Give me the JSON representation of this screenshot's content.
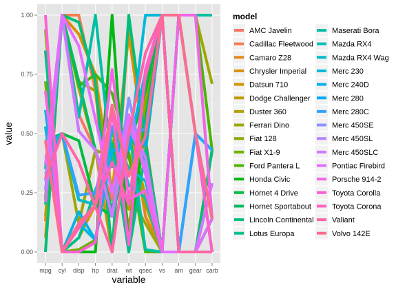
{
  "chart_data": {
    "type": "line",
    "xlabel": "variable",
    "ylabel": "value",
    "legend_title": "model",
    "legend_placement": "right",
    "ylim": [
      0,
      1
    ],
    "y_ticks": [
      "0.00",
      "0.25",
      "0.50",
      "0.75",
      "1.00"
    ],
    "categories": [
      "mpg",
      "cyl",
      "disp",
      "hp",
      "drat",
      "wt",
      "qsec",
      "vs",
      "am",
      "gear",
      "carb"
    ],
    "grid": true,
    "series": [
      {
        "name": "AMC Javelin",
        "color": "#F8766D",
        "values": [
          0.22,
          1.0,
          0.58,
          0.43,
          0.22,
          0.53,
          0.35,
          0,
          0,
          0,
          0.14
        ]
      },
      {
        "name": "Cadillac Fleetwood",
        "color": "#F17D51",
        "values": [
          0.0,
          1.0,
          1.0,
          0.68,
          0.0,
          0.96,
          0.48,
          0,
          0,
          0,
          0.43
        ]
      },
      {
        "name": "Camaro Z28",
        "color": "#E7851E",
        "values": [
          0.13,
          1.0,
          0.72,
          0.68,
          0.25,
          0.58,
          0.15,
          0,
          0,
          0,
          0.43
        ]
      },
      {
        "name": "Chrysler Imperial",
        "color": "#DB8E00",
        "values": [
          0.06,
          1.0,
          0.92,
          0.75,
          0.25,
          0.92,
          0.42,
          0,
          0,
          0,
          0.43
        ]
      },
      {
        "name": "Datsun 710",
        "color": "#CD9600",
        "values": [
          0.53,
          0.0,
          0.06,
          0.2,
          0.47,
          0.18,
          0.64,
          1,
          1,
          0.5,
          0.0
        ]
      },
      {
        "name": "Dodge Challenger",
        "color": "#BE9C00",
        "values": [
          0.22,
          1.0,
          0.69,
          0.43,
          0.0,
          0.5,
          0.24,
          0,
          0,
          0,
          0.14
        ]
      },
      {
        "name": "Duster 360",
        "color": "#AEA200",
        "values": [
          0.15,
          1.0,
          0.72,
          0.68,
          0.25,
          0.42,
          0.2,
          0,
          0,
          0,
          0.43
        ]
      },
      {
        "name": "Ferrari Dino",
        "color": "#9CA700",
        "values": [
          0.4,
          0.5,
          0.12,
          0.43,
          0.4,
          0.25,
          0.12,
          0,
          1,
          1,
          0.71
        ]
      },
      {
        "name": "Fiat 128",
        "color": "#88AC00",
        "values": [
          0.94,
          0.0,
          0.01,
          0.05,
          0.53,
          0.08,
          0.71,
          1,
          1,
          0.5,
          0.0
        ]
      },
      {
        "name": "Fiat X1-9",
        "color": "#70B000",
        "values": [
          0.72,
          0.0,
          0.01,
          0.05,
          0.53,
          0.1,
          0.6,
          1,
          1,
          0.5,
          0.0
        ]
      },
      {
        "name": "Ford Pantera L",
        "color": "#4CB400",
        "values": [
          0.23,
          1.0,
          0.7,
          0.75,
          0.67,
          0.41,
          0.0,
          0,
          1,
          1,
          0.43
        ]
      },
      {
        "name": "Honda Civic",
        "color": "#00B813",
        "values": [
          0.85,
          0.0,
          0.0,
          0.0,
          1.0,
          0.0,
          0.55,
          1,
          1,
          0.5,
          0.14
        ]
      },
      {
        "name": "Hornet 4 Drive",
        "color": "#00BA42",
        "values": [
          0.47,
          0.5,
          0.47,
          0.2,
          0.15,
          0.44,
          0.68,
          1,
          0,
          0,
          0.0
        ]
      },
      {
        "name": "Hornet Sportabout",
        "color": "#00BC5F",
        "values": [
          0.35,
          1.0,
          0.72,
          0.43,
          0.18,
          0.49,
          0.4,
          0,
          0,
          0,
          0.14
        ]
      },
      {
        "name": "Lincoln Continental",
        "color": "#00BE77",
        "values": [
          0.0,
          1.0,
          0.97,
          0.72,
          0.0,
          1.0,
          0.47,
          0,
          0,
          0,
          0.43
        ]
      },
      {
        "name": "Lotus Europa",
        "color": "#00BF8C",
        "values": [
          0.85,
          0.0,
          0.06,
          0.26,
          0.46,
          0.0,
          0.42,
          1,
          1,
          1,
          0.14
        ]
      },
      {
        "name": "Maserati Bora",
        "color": "#00C0A2",
        "values": [
          0.2,
          1.0,
          0.57,
          1.0,
          0.36,
          0.53,
          0.01,
          0,
          1,
          1,
          1.0
        ]
      },
      {
        "name": "Mazda RX4",
        "color": "#00BFB5",
        "values": [
          0.45,
          0.5,
          0.22,
          0.2,
          0.53,
          0.28,
          0.23,
          0,
          1,
          0.5,
          0.43
        ]
      },
      {
        "name": "Mazda RX4 Wag",
        "color": "#00BCC8",
        "values": [
          0.45,
          0.5,
          0.22,
          0.2,
          0.53,
          0.35,
          0.3,
          0,
          1,
          0.5,
          0.43
        ]
      },
      {
        "name": "Merc 230",
        "color": "#00B8D9",
        "values": [
          0.53,
          0.0,
          0.12,
          0.05,
          0.53,
          0.43,
          1.0,
          1,
          0,
          0.5,
          0.14
        ]
      },
      {
        "name": "Merc 240D",
        "color": "#00B2E9",
        "values": [
          0.6,
          0.0,
          0.17,
          0.05,
          0.43,
          0.43,
          0.76,
          1,
          0,
          0.5,
          0.14
        ]
      },
      {
        "name": "Merc 280",
        "color": "#00ABF6",
        "values": [
          0.38,
          0.5,
          0.24,
          0.25,
          0.53,
          0.49,
          0.45,
          1,
          0,
          0.5,
          0.43
        ]
      },
      {
        "name": "Merc 280C",
        "color": "#33A2FF",
        "values": [
          0.33,
          0.5,
          0.24,
          0.25,
          0.53,
          0.49,
          0.52,
          1,
          0,
          0.5,
          0.43
        ]
      },
      {
        "name": "Merc 450SE",
        "color": "#8B93FF",
        "values": [
          0.26,
          1.0,
          0.51,
          0.43,
          0.15,
          0.65,
          0.33,
          0,
          0,
          0,
          0.29
        ]
      },
      {
        "name": "Merc 450SL",
        "color": "#B584FF",
        "values": [
          0.3,
          1.0,
          0.51,
          0.43,
          0.15,
          0.53,
          0.36,
          0,
          0,
          0,
          0.29
        ]
      },
      {
        "name": "Merc 450SLC",
        "color": "#D078FF",
        "values": [
          0.21,
          1.0,
          0.51,
          0.43,
          0.15,
          0.55,
          0.4,
          0,
          0,
          0,
          0.29
        ]
      },
      {
        "name": "Pontiac Firebird",
        "color": "#E46EFF",
        "values": [
          0.37,
          1.0,
          0.87,
          0.56,
          0.25,
          0.58,
          0.33,
          0,
          0,
          0,
          0.14
        ]
      },
      {
        "name": "Porsche 914-2",
        "color": "#F365E6",
        "values": [
          0.68,
          0.0,
          0.12,
          0.2,
          0.77,
          0.22,
          0.26,
          0,
          1,
          1,
          0.14
        ]
      },
      {
        "name": "Toyota Corolla",
        "color": "#FC61D3",
        "values": [
          1.0,
          0.0,
          0.0,
          0.04,
          0.6,
          0.03,
          0.77,
          1,
          1,
          0.5,
          0.0
        ]
      },
      {
        "name": "Toyota Corona",
        "color": "#FF61BD",
        "values": [
          0.47,
          0.0,
          0.1,
          0.2,
          0.38,
          0.2,
          0.74,
          1,
          0,
          0,
          0.0
        ]
      },
      {
        "name": "Valiant",
        "color": "#FF65A5",
        "values": [
          0.31,
          0.5,
          0.38,
          0.19,
          0.0,
          0.5,
          0.84,
          1,
          0,
          0,
          0.0
        ]
      },
      {
        "name": "Volvo 142E",
        "color": "#FF6C91",
        "values": [
          0.47,
          0.0,
          0.12,
          0.2,
          0.62,
          0.32,
          0.49,
          1,
          1,
          0.5,
          0.14
        ]
      }
    ]
  }
}
